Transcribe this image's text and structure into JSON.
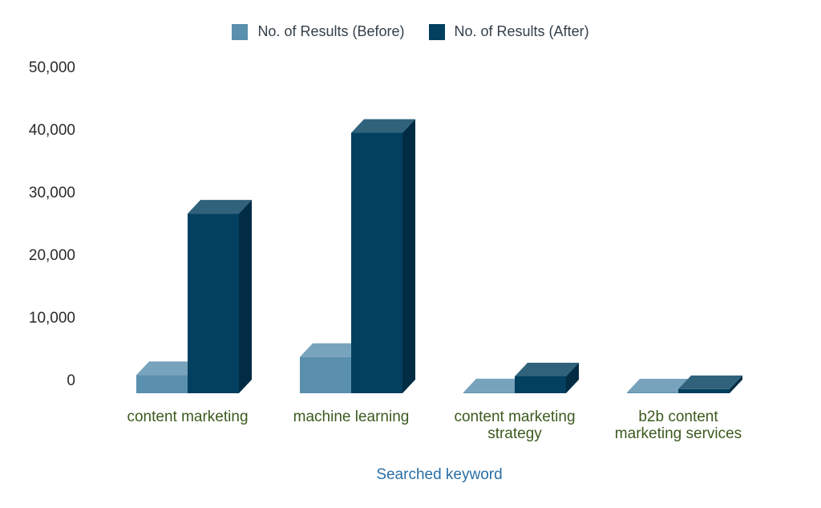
{
  "chart_data": {
    "type": "bar",
    "xlabel": "Searched keyword",
    "ylabel": "",
    "ylim": [
      0,
      50000
    ],
    "yticks": [
      0,
      10000,
      20000,
      30000,
      40000,
      50000
    ],
    "ytick_labels": [
      "0",
      "10,000",
      "20,000",
      "30,000",
      "40,000",
      "50,000"
    ],
    "categories": [
      [
        "content marketing"
      ],
      [
        "machine learning"
      ],
      [
        "content marketing",
        "strategy"
      ],
      [
        "b2b content",
        "marketing services"
      ]
    ],
    "series": [
      {
        "name": "No. of Results (Before)",
        "color": "#5a8fae",
        "values": [
          2900,
          5800,
          150,
          120
        ]
      },
      {
        "name": "No. of Results (After)",
        "color": "#033f5f",
        "values": [
          28700,
          41600,
          2700,
          650
        ]
      }
    ],
    "legend": "top-center",
    "grid": false,
    "style": "3d"
  }
}
